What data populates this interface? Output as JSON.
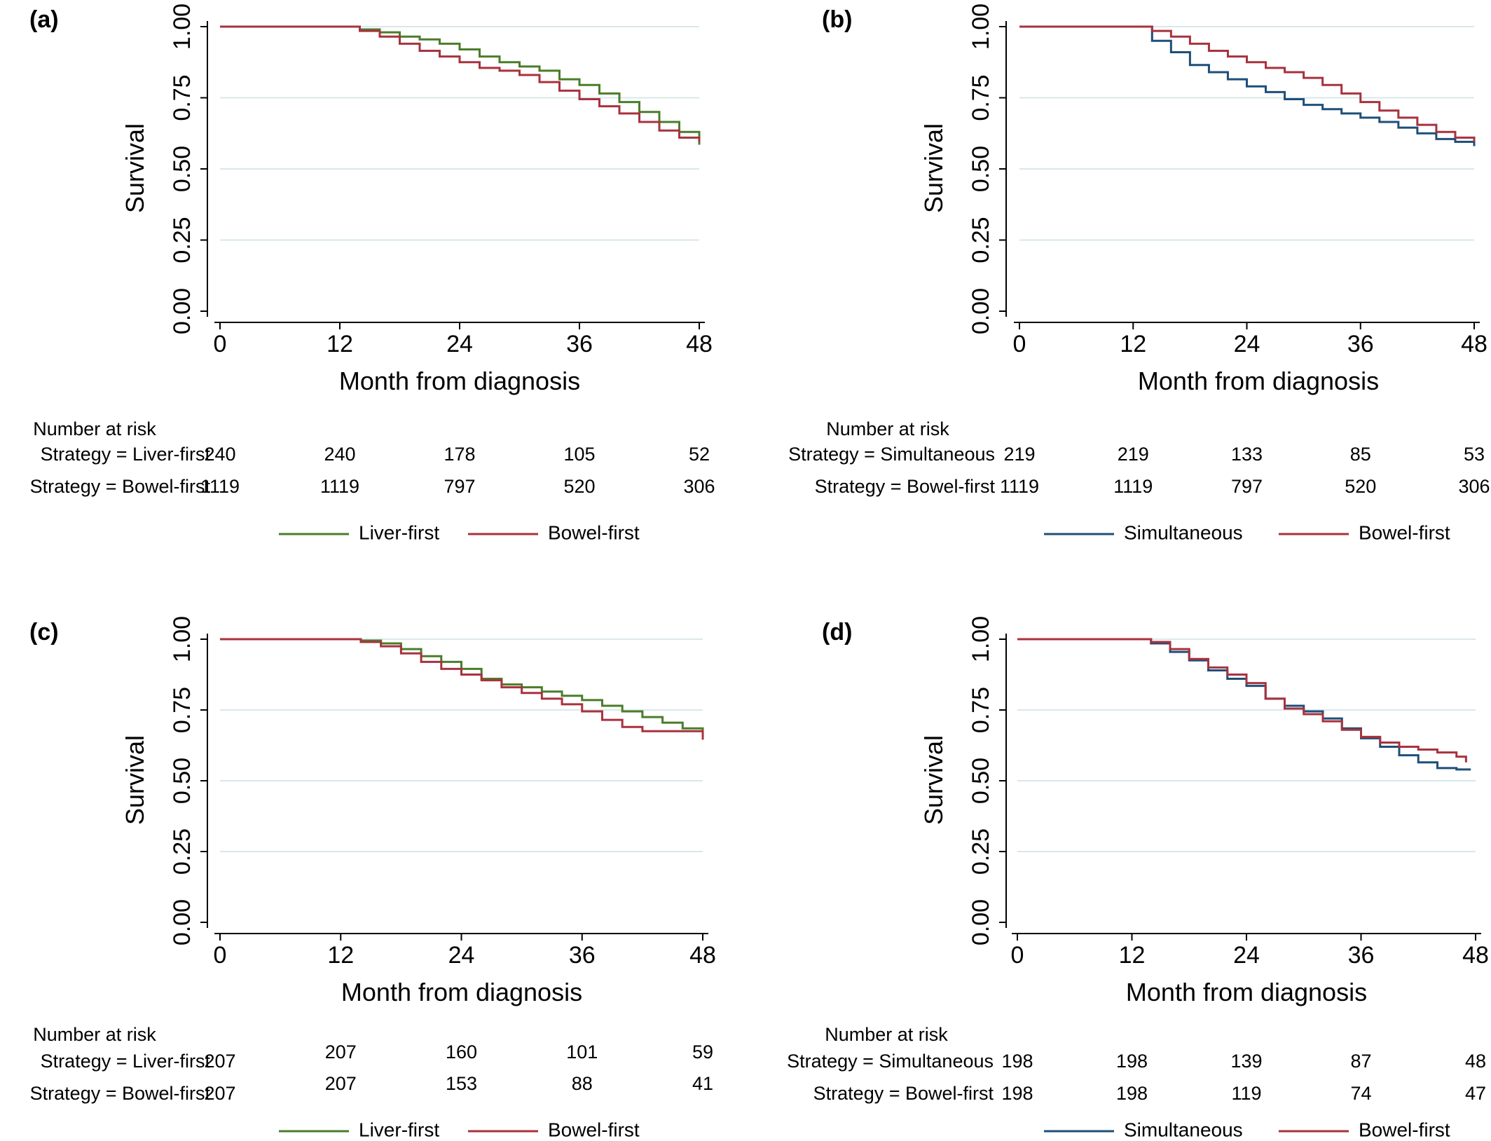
{
  "chart_data": [
    {
      "type": "line",
      "panel_label": "(a)",
      "xlabel": "Month from diagnosis",
      "ylabel": "Survival",
      "xlim": [
        0,
        48
      ],
      "ylim": [
        0,
        1
      ],
      "x_ticks": [
        "0",
        "12",
        "24",
        "36",
        "48"
      ],
      "y_ticks": [
        "0.00",
        "0.25",
        "0.50",
        "0.75",
        "1.00"
      ],
      "grid": true,
      "series": [
        {
          "name": "Liver-first",
          "color": "#4a7d2a",
          "x": [
            0,
            12,
            14,
            16,
            18,
            20,
            22,
            24,
            26,
            28,
            30,
            32,
            34,
            36,
            38,
            40,
            42,
            44,
            46,
            48
          ],
          "y": [
            1.0,
            1.0,
            0.99,
            0.98,
            0.965,
            0.955,
            0.94,
            0.92,
            0.895,
            0.875,
            0.86,
            0.845,
            0.815,
            0.795,
            0.765,
            0.735,
            0.7,
            0.665,
            0.63,
            0.585
          ]
        },
        {
          "name": "Bowel-first",
          "color": "#a8323e",
          "x": [
            0,
            12,
            14,
            16,
            18,
            20,
            22,
            24,
            26,
            28,
            30,
            32,
            34,
            36,
            38,
            40,
            42,
            44,
            46,
            48
          ],
          "y": [
            1.0,
            1.0,
            0.985,
            0.965,
            0.94,
            0.915,
            0.895,
            0.875,
            0.855,
            0.845,
            0.83,
            0.805,
            0.775,
            0.745,
            0.72,
            0.695,
            0.665,
            0.635,
            0.61,
            0.595
          ]
        }
      ],
      "risk_table": {
        "title": "Number at risk",
        "rows": [
          {
            "label": "Strategy = Liver-first",
            "values": [
              "240",
              "240",
              "178",
              "105",
              "52"
            ]
          },
          {
            "label": "Strategy = Bowel-first",
            "values": [
              "1119",
              "1119",
              "797",
              "520",
              "306"
            ]
          }
        ]
      }
    },
    {
      "type": "line",
      "panel_label": "(b)",
      "xlabel": "Month from diagnosis",
      "ylabel": "Survival",
      "xlim": [
        0,
        48
      ],
      "ylim": [
        0,
        1
      ],
      "x_ticks": [
        "0",
        "12",
        "24",
        "36",
        "48"
      ],
      "y_ticks": [
        "0.00",
        "0.25",
        "0.50",
        "0.75",
        "1.00"
      ],
      "grid": true,
      "series": [
        {
          "name": "Simultaneous",
          "color": "#1f4e79",
          "x": [
            0,
            12,
            14,
            16,
            18,
            20,
            22,
            24,
            26,
            28,
            30,
            32,
            34,
            36,
            38,
            40,
            42,
            44,
            46,
            48
          ],
          "y": [
            1.0,
            1.0,
            0.95,
            0.91,
            0.865,
            0.84,
            0.815,
            0.79,
            0.77,
            0.745,
            0.725,
            0.71,
            0.695,
            0.68,
            0.665,
            0.645,
            0.625,
            0.605,
            0.595,
            0.58
          ]
        },
        {
          "name": "Bowel-first",
          "color": "#a8323e",
          "x": [
            0,
            12,
            14,
            16,
            18,
            20,
            22,
            24,
            26,
            28,
            30,
            32,
            34,
            36,
            38,
            40,
            42,
            44,
            46,
            48
          ],
          "y": [
            1.0,
            1.0,
            0.985,
            0.965,
            0.94,
            0.915,
            0.895,
            0.875,
            0.855,
            0.84,
            0.82,
            0.795,
            0.765,
            0.735,
            0.705,
            0.68,
            0.655,
            0.63,
            0.61,
            0.595
          ]
        }
      ],
      "risk_table": {
        "title": "Number at risk",
        "rows": [
          {
            "label": "Strategy = Simultaneous",
            "values": [
              "219",
              "219",
              "133",
              "85",
              "53"
            ]
          },
          {
            "label": "Strategy = Bowel-first",
            "values": [
              "1119",
              "1119",
              "797",
              "520",
              "306"
            ]
          }
        ]
      }
    },
    {
      "type": "line",
      "panel_label": "(c)",
      "xlabel": "Month from diagnosis",
      "ylabel": "Survival",
      "xlim": [
        0,
        48
      ],
      "ylim": [
        0,
        1
      ],
      "x_ticks": [
        "0",
        "12",
        "24",
        "36",
        "48"
      ],
      "y_ticks": [
        "0.00",
        "0.25",
        "0.50",
        "0.75",
        "1.00"
      ],
      "grid": true,
      "series": [
        {
          "name": "Liver-first",
          "color": "#4a7d2a",
          "x": [
            0,
            12,
            14,
            16,
            18,
            20,
            22,
            24,
            26,
            28,
            30,
            32,
            34,
            36,
            38,
            40,
            42,
            44,
            46,
            48
          ],
          "y": [
            1.0,
            1.0,
            0.995,
            0.985,
            0.965,
            0.94,
            0.92,
            0.895,
            0.86,
            0.84,
            0.83,
            0.815,
            0.8,
            0.785,
            0.765,
            0.745,
            0.725,
            0.705,
            0.685,
            0.66
          ]
        },
        {
          "name": "Bowel-first",
          "color": "#a8323e",
          "x": [
            0,
            12,
            14,
            16,
            18,
            20,
            22,
            24,
            26,
            28,
            30,
            32,
            34,
            36,
            38,
            40,
            42,
            44,
            46,
            48
          ],
          "y": [
            1.0,
            1.0,
            0.99,
            0.975,
            0.95,
            0.92,
            0.895,
            0.875,
            0.855,
            0.83,
            0.81,
            0.79,
            0.77,
            0.745,
            0.715,
            0.69,
            0.675,
            0.675,
            0.675,
            0.645
          ]
        }
      ],
      "risk_table": {
        "title": "Number at risk",
        "rows": [
          {
            "label": "Strategy = Liver-first",
            "values": [
              "207",
              "207",
              "160",
              "101",
              "59"
            ]
          },
          {
            "label": "Strategy = Bowel-first",
            "values": [
              "207",
              "207",
              "153",
              "88",
              "41"
            ]
          }
        ]
      }
    },
    {
      "type": "line",
      "panel_label": "(d)",
      "xlabel": "Month from diagnosis",
      "ylabel": "Survival",
      "xlim": [
        0,
        48
      ],
      "ylim": [
        0,
        1
      ],
      "x_ticks": [
        "0",
        "12",
        "24",
        "36",
        "48"
      ],
      "y_ticks": [
        "0.00",
        "0.25",
        "0.50",
        "0.75",
        "1.00"
      ],
      "grid": true,
      "series": [
        {
          "name": "Simultaneous",
          "color": "#1f4e79",
          "x": [
            0,
            12,
            14,
            16,
            18,
            20,
            22,
            24,
            26,
            28,
            30,
            32,
            34,
            36,
            38,
            40,
            42,
            44,
            46,
            47.5
          ],
          "y": [
            1.0,
            1.0,
            0.985,
            0.955,
            0.925,
            0.89,
            0.86,
            0.835,
            0.79,
            0.765,
            0.745,
            0.72,
            0.685,
            0.65,
            0.62,
            0.59,
            0.565,
            0.545,
            0.54,
            0.54
          ]
        },
        {
          "name": "Bowel-first",
          "color": "#a8323e",
          "x": [
            0,
            12,
            14,
            16,
            18,
            20,
            22,
            24,
            26,
            28,
            30,
            32,
            34,
            36,
            38,
            40,
            42,
            44,
            46,
            47
          ],
          "y": [
            1.0,
            1.0,
            0.99,
            0.965,
            0.93,
            0.9,
            0.875,
            0.845,
            0.79,
            0.755,
            0.735,
            0.71,
            0.68,
            0.655,
            0.635,
            0.62,
            0.61,
            0.6,
            0.585,
            0.565
          ]
        }
      ],
      "risk_table": {
        "title": "Number at risk",
        "rows": [
          {
            "label": "Strategy = Simultaneous",
            "values": [
              "198",
              "198",
              "139",
              "87",
              "48"
            ]
          },
          {
            "label": "Strategy = Bowel-first",
            "values": [
              "198",
              "198",
              "119",
              "74",
              "47"
            ]
          }
        ]
      }
    }
  ]
}
